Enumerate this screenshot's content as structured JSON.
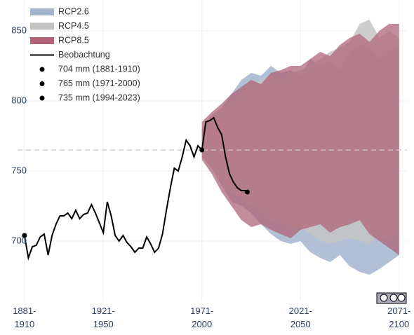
{
  "chart_data": {
    "type": "band-line",
    "xlim": [
      1877.5,
      2075
    ],
    "ylim": [
      657,
      872
    ],
    "yticks": [
      700,
      750,
      800,
      850
    ],
    "xticks": [
      {
        "value": 1881,
        "label": "1881-1910"
      },
      {
        "value": 1921,
        "label": "1921-1950"
      },
      {
        "value": 1971,
        "label": "1971-2000"
      },
      {
        "value": 2021,
        "label": "2021-2050"
      },
      {
        "value": 2071,
        "label": "2071-2100"
      }
    ],
    "grid": true,
    "reference_line": 765,
    "legend": "top-left",
    "bands": [
      {
        "name": "RCP2.6",
        "color": "#a3b5cc",
        "x": [
          1971,
          1976,
          1981,
          1986,
          1991,
          1996,
          2001,
          2006,
          2011,
          2016,
          2021,
          2026,
          2031,
          2036,
          2041,
          2046,
          2051,
          2056,
          2061,
          2066,
          2071
        ],
        "low": [
          760,
          752,
          740,
          728,
          725,
          720,
          712,
          705,
          700,
          698,
          700,
          692,
          688,
          685,
          690,
          682,
          678,
          676,
          680,
          685,
          690
        ],
        "high": [
          780,
          790,
          795,
          805,
          815,
          820,
          818,
          825,
          820,
          822,
          818,
          830,
          825,
          828,
          822,
          835,
          840,
          838,
          830,
          835,
          840
        ]
      },
      {
        "name": "RCP4.5",
        "color": "#c4c4c4",
        "x": [
          1971,
          1976,
          1981,
          1986,
          1991,
          1996,
          2001,
          2006,
          2011,
          2016,
          2021,
          2026,
          2031,
          2036,
          2041,
          2046,
          2051,
          2056,
          2061,
          2066,
          2071
        ],
        "low": [
          760,
          752,
          742,
          735,
          730,
          725,
          720,
          715,
          712,
          708,
          710,
          705,
          700,
          698,
          700,
          702,
          700,
          698,
          705,
          700,
          705
        ],
        "high": [
          780,
          790,
          795,
          800,
          805,
          812,
          815,
          818,
          815,
          820,
          822,
          825,
          830,
          835,
          838,
          842,
          855,
          858,
          845,
          850,
          845
        ]
      },
      {
        "name": "RCP8.5",
        "color": "#b06478",
        "x": [
          1971,
          1976,
          1981,
          1986,
          1991,
          1996,
          2001,
          2006,
          2011,
          2016,
          2021,
          2026,
          2031,
          2036,
          2041,
          2046,
          2051,
          2056,
          2061,
          2066,
          2071
        ],
        "low": [
          758,
          748,
          735,
          725,
          715,
          710,
          712,
          708,
          705,
          702,
          708,
          710,
          712,
          706,
          710,
          712,
          715,
          705,
          700,
          695,
          690
        ],
        "high": [
          785,
          792,
          798,
          805,
          810,
          815,
          812,
          820,
          822,
          825,
          825,
          830,
          835,
          832,
          840,
          845,
          848,
          842,
          850,
          855,
          855
        ]
      }
    ],
    "series": [
      {
        "name": "Beobachtung",
        "color": "#000000",
        "x": [
          1881,
          1883,
          1885,
          1887,
          1889,
          1891,
          1893,
          1895,
          1897,
          1899,
          1901,
          1903,
          1905,
          1907,
          1909,
          1911,
          1913,
          1915,
          1917,
          1919,
          1921,
          1923,
          1925,
          1927,
          1929,
          1931,
          1933,
          1935,
          1937,
          1939,
          1941,
          1943,
          1945,
          1947,
          1949,
          1951,
          1953,
          1955,
          1957,
          1959,
          1961,
          1963,
          1965,
          1967,
          1969,
          1971,
          1973,
          1975,
          1977,
          1979,
          1981,
          1983,
          1985,
          1987,
          1989,
          1991,
          1993,
          1994
        ],
        "values": [
          704,
          688,
          696,
          697,
          703,
          705,
          690,
          704,
          712,
          718,
          718,
          720,
          716,
          722,
          716,
          719,
          720,
          726,
          720,
          713,
          706,
          728,
          718,
          704,
          700,
          704,
          699,
          696,
          692,
          695,
          695,
          703,
          698,
          692,
          695,
          705,
          722,
          738,
          752,
          750,
          760,
          772,
          768,
          760,
          768,
          765,
          785,
          786,
          788,
          781,
          776,
          760,
          748,
          742,
          738,
          736,
          736,
          735
        ]
      }
    ],
    "points": [
      {
        "x": 1881,
        "y": 704,
        "label": "704 mm (1881-1910)"
      },
      {
        "x": 1971,
        "y": 765,
        "label": "765 mm (1971-2000)"
      },
      {
        "x": 1994,
        "y": 735,
        "label": "735 mm (1994-2023)"
      }
    ]
  }
}
